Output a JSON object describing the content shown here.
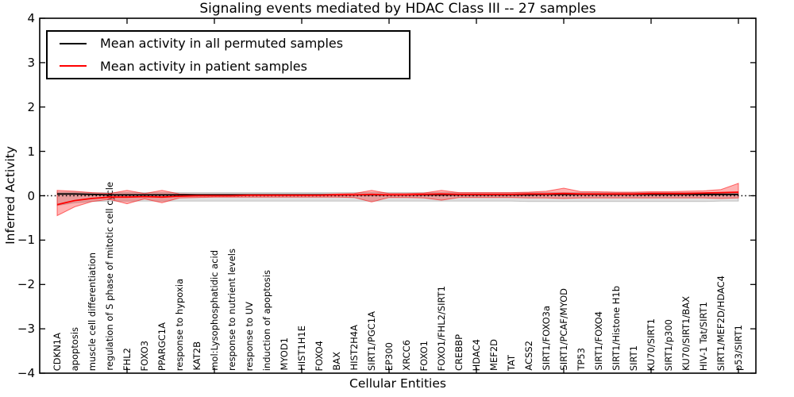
{
  "figure": {
    "title": "Signaling events mediated by HDAC Class III -- 27 samples",
    "xlabel": "Cellular Entities",
    "ylabel": "Inferred Activity"
  },
  "chart_data": {
    "type": "line",
    "title": "Signaling events mediated by HDAC Class III -- 27 samples",
    "xlabel": "Cellular Entities",
    "ylabel": "Inferred Activity",
    "ylim": [
      -4,
      4
    ],
    "yticks": [
      {
        "value": 4,
        "label": "4"
      },
      {
        "value": 3,
        "label": "3"
      },
      {
        "value": 2,
        "label": "2"
      },
      {
        "value": 1,
        "label": "1"
      },
      {
        "value": 0,
        "label": "0"
      },
      {
        "value": -1,
        "label": "−1"
      },
      {
        "value": -2,
        "label": "−2"
      },
      {
        "value": -3,
        "label": "−3"
      },
      {
        "value": -4,
        "label": "−4"
      }
    ],
    "xtick_step": 5,
    "grid": false,
    "zero_line": "dotted",
    "legend_position": "upper left",
    "categories": [
      "CDKN1A",
      "apoptosis",
      "muscle cell differentiation",
      "regulation of S phase of mitotic cell cycle",
      "FHL2",
      "FOXO3",
      "PPARGC1A",
      "response to hypoxia",
      "KAT2B",
      "mol:Lysophosphatidic acid",
      "response to nutrient levels",
      "response to UV",
      "induction of apoptosis",
      "MYOD1",
      "HIST1H1E",
      "FOXO4",
      "BAX",
      "HIST2H4A",
      "SIRT1/PGC1A",
      "EP300",
      "XRCC6",
      "FOXO1",
      "FOXO1/FHL2/SIRT1",
      "CREBBP",
      "HDAC4",
      "MEF2D",
      "TAT",
      "ACSS2",
      "SIRT1/FOXO3a",
      "SIRT1/PCAF/MYOD",
      "TP53",
      "SIRT1/FOXO4",
      "SIRT1/Histone H1b",
      "SIRT1",
      "KU70/SIRT1",
      "SIRT1/p300",
      "KU70/SIRT1/BAX",
      "HIV-1 Tat/SIRT1",
      "SIRT1/MEF2D/HDAC4",
      "p53/SIRT1"
    ],
    "series": [
      {
        "name": "Mean activity in all permuted samples",
        "color": "#000000",
        "band_fill": "rgba(110,110,110,0.22)",
        "band_edge": "rgba(110,110,110,0.35)",
        "values": [
          0.04,
          0.04,
          0.03,
          0.02,
          0.02,
          0.02,
          0.02,
          0.02,
          0.02,
          0.02,
          0.02,
          0.02,
          0.02,
          0.02,
          0.02,
          0.02,
          0.02,
          0.02,
          0.02,
          0.02,
          0.02,
          0.02,
          0.02,
          0.02,
          0.02,
          0.02,
          0.02,
          0.02,
          0.03,
          0.03,
          0.03,
          0.03,
          0.03,
          0.03,
          0.03,
          0.03,
          0.03,
          0.03,
          0.03,
          0.03
        ],
        "band_lower": [
          -0.22,
          -0.16,
          -0.13,
          -0.12,
          -0.12,
          -0.12,
          -0.12,
          -0.12,
          -0.12,
          -0.12,
          -0.12,
          -0.12,
          -0.12,
          -0.12,
          -0.12,
          -0.12,
          -0.12,
          -0.12,
          -0.12,
          -0.12,
          -0.12,
          -0.12,
          -0.12,
          -0.12,
          -0.12,
          -0.12,
          -0.12,
          -0.13,
          -0.13,
          -0.13,
          -0.13,
          -0.13,
          -0.13,
          -0.13,
          -0.13,
          -0.13,
          -0.13,
          -0.13,
          -0.12,
          -0.12
        ],
        "band_upper": [
          0.08,
          0.08,
          0.07,
          0.07,
          0.07,
          0.07,
          0.07,
          0.07,
          0.07,
          0.07,
          0.07,
          0.07,
          0.07,
          0.07,
          0.07,
          0.07,
          0.07,
          0.07,
          0.07,
          0.07,
          0.07,
          0.07,
          0.07,
          0.07,
          0.07,
          0.07,
          0.07,
          0.07,
          0.07,
          0.07,
          0.07,
          0.07,
          0.07,
          0.07,
          0.07,
          0.07,
          0.07,
          0.07,
          0.07,
          0.08
        ]
      },
      {
        "name": "Mean activity in patient samples",
        "color": "#ff0000",
        "band_fill": "rgba(255,0,0,0.30)",
        "band_edge": "rgba(255,0,0,0.55)",
        "values": [
          -0.2,
          -0.11,
          -0.06,
          -0.03,
          -0.03,
          -0.02,
          -0.03,
          -0.01,
          0.0,
          0.0,
          0.0,
          0.01,
          0.01,
          0.01,
          0.01,
          0.01,
          0.02,
          0.02,
          0.03,
          0.02,
          0.02,
          0.03,
          0.04,
          0.03,
          0.03,
          0.03,
          0.03,
          0.04,
          0.04,
          0.05,
          0.04,
          0.04,
          0.04,
          0.04,
          0.05,
          0.05,
          0.05,
          0.06,
          0.07,
          0.08
        ],
        "band_lower": [
          -0.45,
          -0.25,
          -0.13,
          -0.08,
          -0.18,
          -0.07,
          -0.16,
          -0.05,
          -0.04,
          -0.03,
          -0.03,
          -0.03,
          -0.03,
          -0.03,
          -0.03,
          -0.03,
          -0.03,
          -0.04,
          -0.14,
          -0.04,
          -0.04,
          -0.05,
          -0.1,
          -0.04,
          -0.04,
          -0.04,
          -0.04,
          -0.05,
          -0.05,
          -0.06,
          -0.05,
          -0.05,
          -0.05,
          -0.05,
          -0.05,
          -0.05,
          -0.05,
          -0.05,
          -0.06,
          -0.05
        ],
        "band_upper": [
          0.12,
          0.1,
          0.07,
          0.05,
          0.12,
          0.05,
          0.12,
          0.04,
          0.03,
          0.03,
          0.03,
          0.03,
          0.03,
          0.03,
          0.03,
          0.03,
          0.04,
          0.05,
          0.12,
          0.05,
          0.05,
          0.06,
          0.12,
          0.07,
          0.07,
          0.07,
          0.07,
          0.08,
          0.1,
          0.17,
          0.09,
          0.09,
          0.08,
          0.08,
          0.09,
          0.09,
          0.1,
          0.11,
          0.14,
          0.28
        ]
      }
    ]
  }
}
